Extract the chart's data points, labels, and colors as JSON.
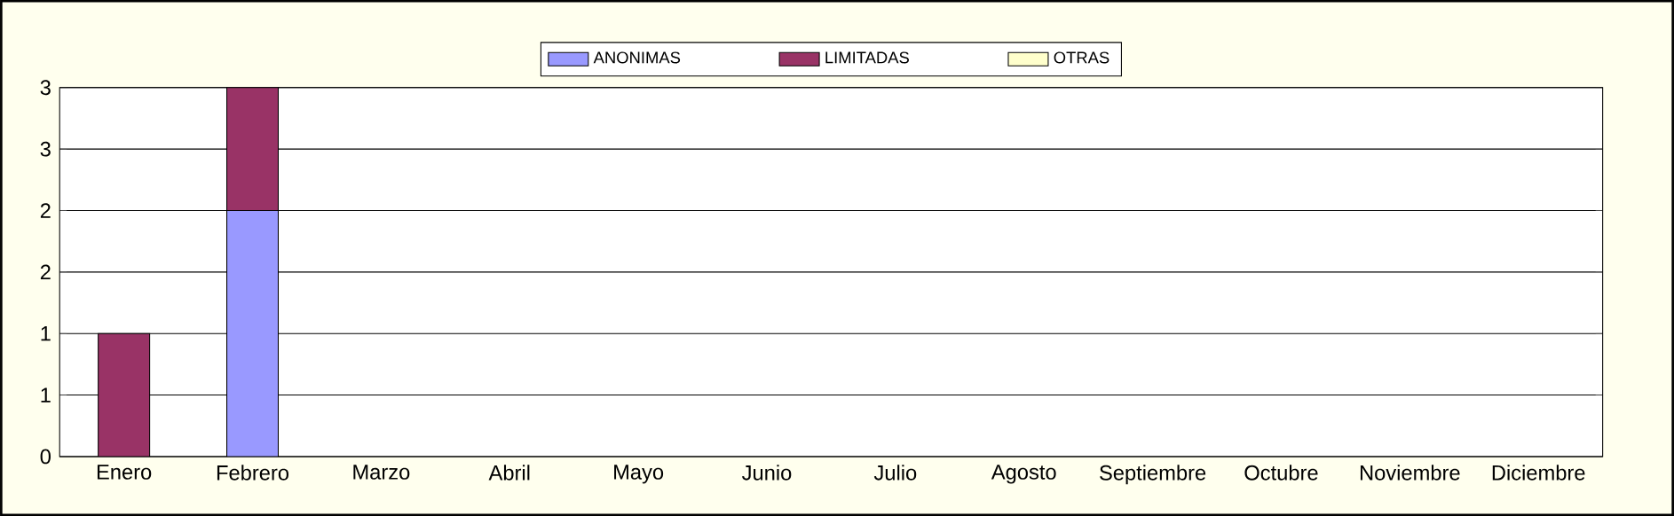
{
  "chart_data": {
    "type": "bar",
    "stacked": true,
    "categories": [
      "Enero",
      "Febrero",
      "Marzo",
      "Abril",
      "Mayo",
      "Junio",
      "Julio",
      "Agosto",
      "Septiembre",
      "Octubre",
      "Noviembre",
      "Diciembre"
    ],
    "series": [
      {
        "name": "ANONIMAS",
        "color": "#9999ff",
        "values": [
          0,
          2,
          0,
          0,
          0,
          0,
          0,
          0,
          0,
          0,
          0,
          0
        ]
      },
      {
        "name": "LIMITADAS",
        "color": "#993366",
        "values": [
          1,
          1,
          0,
          0,
          0,
          0,
          0,
          0,
          0,
          0,
          0,
          0
        ]
      },
      {
        "name": "OTRAS",
        "color": "#ffffcc",
        "values": [
          0,
          0,
          0,
          0,
          0,
          0,
          0,
          0,
          0,
          0,
          0,
          0
        ]
      }
    ],
    "ylim": [
      0,
      3
    ],
    "yticks": [
      0,
      {
        "value": 0.5,
        "label": "1"
      },
      1,
      {
        "value": 1.5,
        "label": "2"
      },
      2,
      {
        "value": 2.5,
        "label": "3"
      },
      3
    ],
    "grid": "y",
    "legend": "top"
  }
}
